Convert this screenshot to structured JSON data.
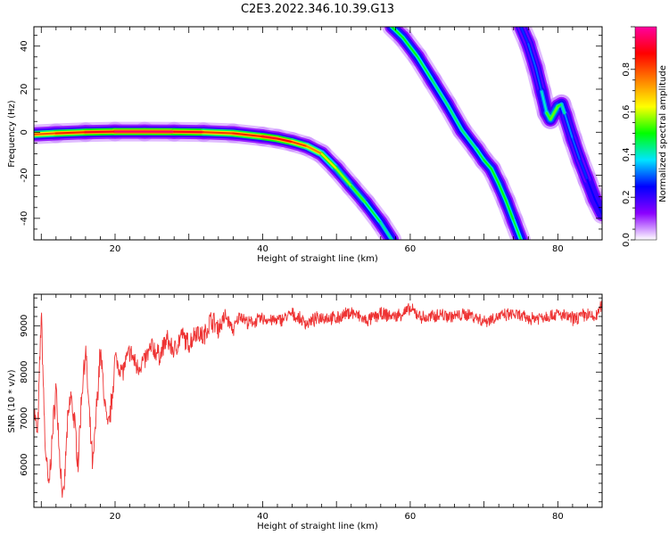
{
  "figure": {
    "title": "C2E3.2022.346.10.39.G13"
  },
  "chart_data": [
    {
      "type": "heatmap",
      "title": "",
      "xlabel": "Height of straight line (km)",
      "ylabel": "Frequency (Hz)",
      "xlim": [
        9,
        86
      ],
      "ylim": [
        -50,
        49
      ],
      "xticks": [
        20,
        40,
        60,
        80
      ],
      "yticks": [
        -40,
        -20,
        0,
        20,
        40
      ],
      "colorbar": {
        "label": "Normalized spectral amplitude",
        "range": [
          0,
          1
        ],
        "ticks": [
          "0.0",
          "0.2",
          "0.4",
          "0.6",
          "0.8"
        ],
        "colors": [
          "#ffffff",
          "#8b00ff",
          "#0000ff",
          "#00e5ff",
          "#00ff00",
          "#ffff00",
          "#ff8000",
          "#ff0000",
          "#ff00a0"
        ]
      },
      "tracks": [
        {
          "name": "",
          "x": [
            9,
            12,
            16,
            20,
            24,
            28,
            32,
            36,
            40,
            42,
            44,
            46,
            48,
            50,
            52,
            54,
            56,
            57.5
          ],
          "y": [
            -1,
            -0.5,
            0,
            0.3,
            0.3,
            0.2,
            0,
            -0.5,
            -2,
            -3,
            -4.5,
            -6.5,
            -10,
            -17,
            -25,
            -33,
            -42,
            -50
          ],
          "peak": [
            0.75,
            0.85,
            0.85,
            0.95,
            0.95,
            0.95,
            0.85,
            0.8,
            0.9,
            0.9,
            0.85,
            0.8,
            0.7,
            0.6,
            0.55,
            0.5,
            0.45,
            0.4
          ]
        },
        {
          "name": "",
          "x": [
            57.5,
            59,
            61,
            63,
            65,
            67,
            69,
            70,
            71,
            72,
            73,
            74,
            75
          ],
          "y": [
            49,
            44,
            35,
            24,
            13,
            1,
            -8,
            -13,
            -17,
            -24,
            -32,
            -41,
            -50
          ],
          "peak": [
            0.5,
            0.5,
            0.5,
            0.45,
            0.45,
            0.45,
            0.45,
            0.5,
            0.5,
            0.5,
            0.5,
            0.5,
            0.45
          ]
        },
        {
          "name": "",
          "x": [
            75,
            76,
            77,
            77.8,
            78.5,
            79,
            79.5,
            80,
            80.5,
            81,
            82,
            83,
            84,
            85,
            86
          ],
          "y": [
            49,
            41,
            30,
            19,
            9,
            6,
            9,
            12,
            13,
            8,
            -3,
            -13,
            -22,
            -31,
            -38
          ],
          "peak": [
            0.25,
            0.3,
            0.3,
            0.3,
            0.5,
            0.55,
            0.55,
            0.55,
            0.5,
            0.35,
            0.3,
            0.3,
            0.25,
            0.25,
            0.25
          ]
        }
      ]
    },
    {
      "type": "line",
      "title": "",
      "xlabel": "Height of straight line (km)",
      "ylabel": "SNR (10 * v/v)",
      "xlim": [
        9,
        86
      ],
      "ylim": [
        5080,
        9680
      ],
      "xticks": [
        20,
        40,
        60,
        80
      ],
      "yticks": [
        6000,
        7000,
        8000,
        9000
      ],
      "series": [
        {
          "name": "",
          "color": "#ee3333",
          "x": [
            9,
            9.5,
            10,
            10.5,
            11,
            11.5,
            12,
            12.5,
            13,
            13.5,
            14,
            14.5,
            15,
            15.5,
            16,
            16.5,
            17,
            17.5,
            18,
            18.5,
            19,
            19.5,
            20,
            21,
            22,
            23,
            24,
            25,
            26,
            27,
            28,
            29,
            30,
            31,
            32,
            33,
            34,
            35,
            36,
            37,
            38,
            40,
            42,
            44,
            46,
            48,
            50,
            52,
            54,
            56,
            58,
            60,
            62,
            64,
            66,
            68,
            70,
            72,
            74,
            76,
            78,
            80,
            82,
            84,
            85,
            86
          ],
          "y": [
            7200,
            6600,
            9300,
            6500,
            5450,
            6600,
            7700,
            6150,
            5150,
            6750,
            7500,
            6900,
            6050,
            7600,
            8500,
            7050,
            5920,
            7250,
            8450,
            7550,
            6700,
            7300,
            8300,
            8000,
            8450,
            8100,
            8250,
            8550,
            8350,
            8700,
            8450,
            8800,
            8600,
            8900,
            8750,
            9150,
            8950,
            9200,
            8900,
            9250,
            9050,
            9150,
            9100,
            9250,
            9050,
            9200,
            9150,
            9300,
            9100,
            9250,
            9200,
            9350,
            9150,
            9250,
            9200,
            9250,
            9100,
            9200,
            9250,
            9150,
            9200,
            9250,
            9150,
            9250,
            9150,
            9450
          ]
        }
      ]
    }
  ]
}
